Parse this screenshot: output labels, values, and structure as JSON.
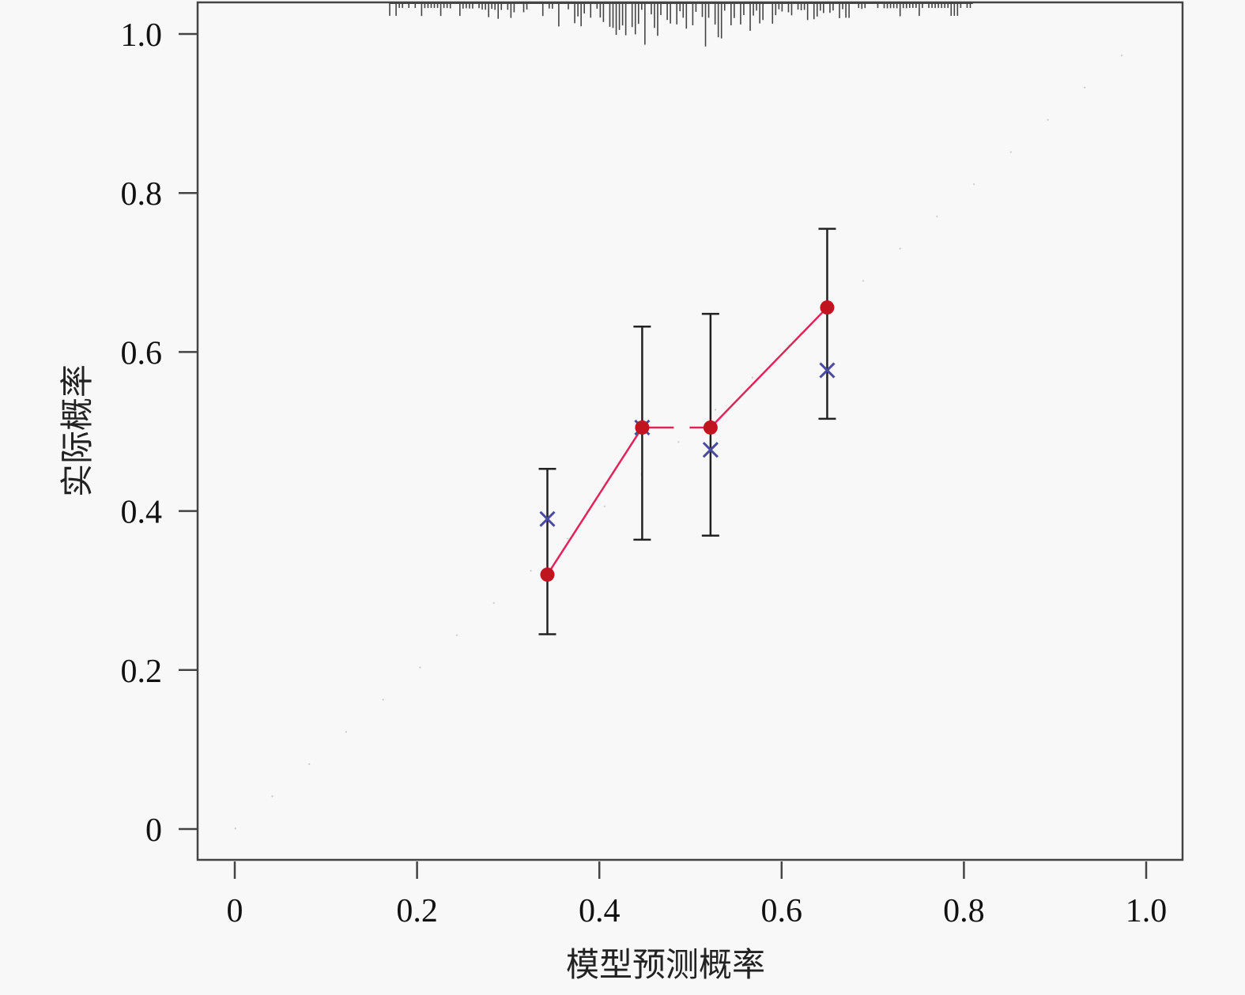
{
  "chart_data": {
    "type": "scatter",
    "title": "",
    "xlabel": "模型预测概率",
    "ylabel": "实际概率",
    "xlim": [
      0,
      1.0
    ],
    "ylim": [
      0,
      1.0
    ],
    "xticks": [
      "0",
      "0.2",
      "0.4",
      "0.6",
      "0.8",
      "1.0"
    ],
    "yticks": [
      "0",
      "0.2",
      "0.4",
      "0.6",
      "0.8",
      "1.0"
    ],
    "grid": false,
    "legend": "none",
    "ideal_line": {
      "from": [
        0,
        0
      ],
      "to": [
        1,
        1
      ],
      "style": "dotted",
      "color": "#cccccc"
    },
    "observed": {
      "marker": "circle",
      "color": "#c0141e",
      "line_color": "#e0245a",
      "x": [
        0.343,
        0.447,
        0.522,
        0.65
      ],
      "y": [
        0.32,
        0.505,
        0.505,
        0.656
      ],
      "ci_low": [
        0.245,
        0.364,
        0.369,
        0.516
      ],
      "ci_high": [
        0.453,
        0.632,
        0.648,
        0.755
      ]
    },
    "bias_corrected": {
      "marker": "x",
      "color": "#4a4aa0",
      "x": [
        0.343,
        0.447,
        0.522,
        0.65
      ],
      "y": [
        0.39,
        0.505,
        0.477,
        0.577
      ]
    },
    "rug": {
      "position": "top",
      "range": [
        0.17,
        0.81
      ],
      "peak": 0.48,
      "color": "#444444"
    }
  }
}
